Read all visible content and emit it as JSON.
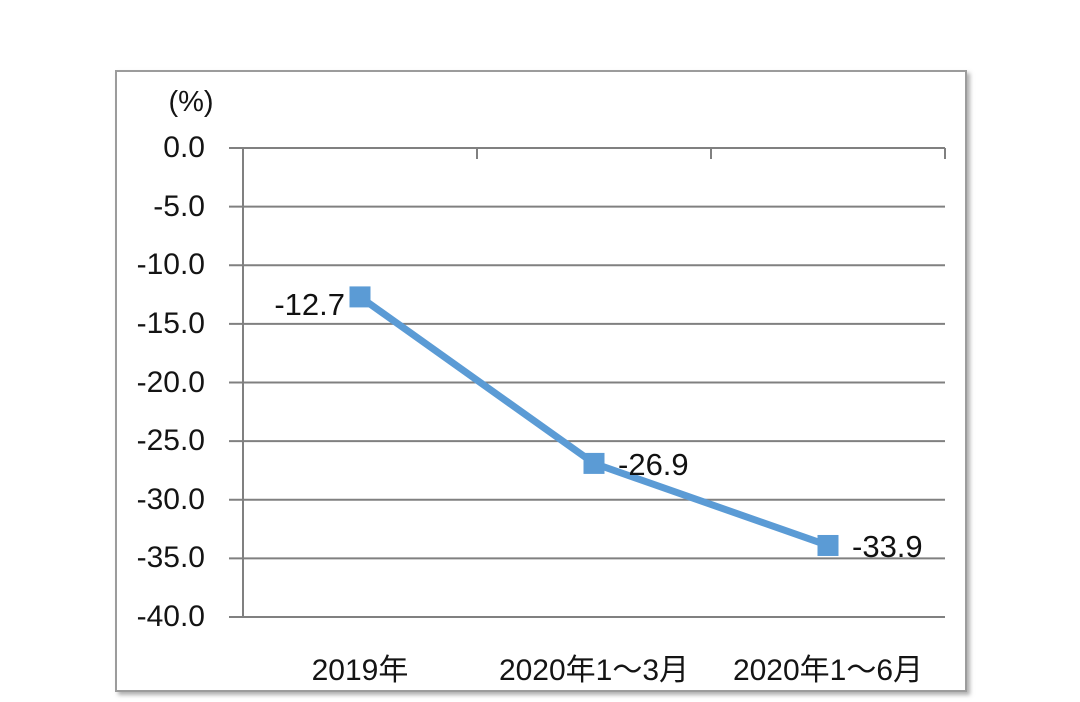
{
  "chart_data": {
    "type": "line",
    "title": "",
    "unit_label": "(%)",
    "categories": [
      "2019年",
      "2020年1～3月",
      "2020年1～6月"
    ],
    "series": [
      {
        "name": "series-1",
        "values": [
          -12.7,
          -26.9,
          -33.9
        ]
      }
    ],
    "data_labels": [
      "-12.7",
      "-26.9",
      "-33.9"
    ],
    "yticks": [
      0,
      -5,
      -10,
      -15,
      -20,
      -25,
      -30,
      -35,
      -40
    ],
    "ytick_labels": [
      "0.0",
      "-5.0",
      "-10.0",
      "-15.0",
      "-20.0",
      "-25.0",
      "-30.0",
      "-35.0",
      "-40.0"
    ],
    "ylim": [
      -40,
      0
    ],
    "xlabel": "",
    "ylabel": "(%)",
    "grid": true,
    "legend": "none",
    "line_color": "#5B9BD5",
    "marker": "square",
    "gridline_color": "#808080",
    "text_color": "#141414"
  }
}
